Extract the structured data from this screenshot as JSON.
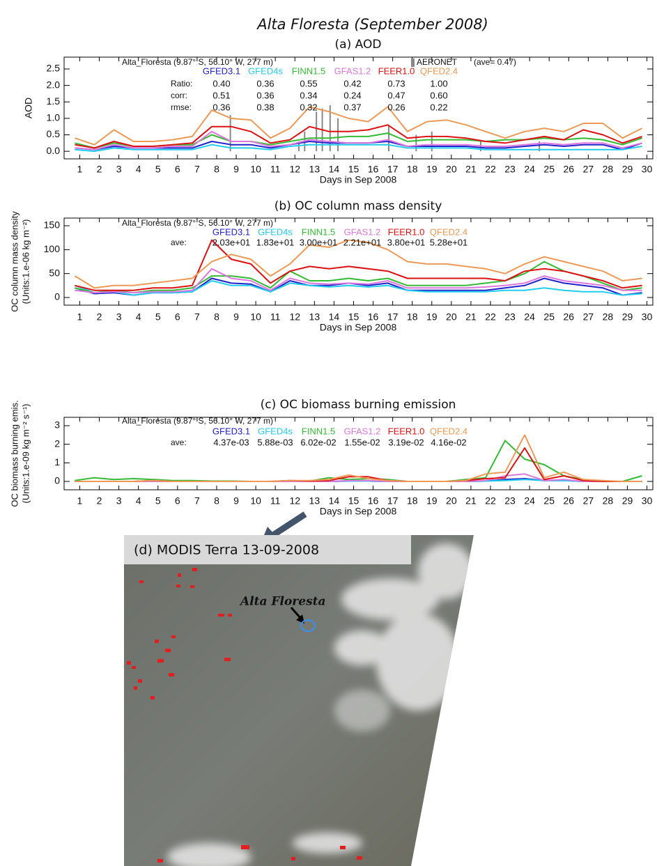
{
  "title": "Alta Floresta (September 2008)",
  "chart_data": [
    {
      "type": "line",
      "title": "(a) AOD",
      "station": "Alta_Floresta (9.87° S,  56.10° W,  277 m)",
      "xlabel": "Days in Sep 2008",
      "ylabel": [
        "AOD"
      ],
      "x": [
        0.75,
        1.75,
        2.75,
        3.75,
        4.75,
        5.75,
        6.75,
        7.75,
        8.75,
        9.75,
        10.75,
        11.75,
        12.75,
        13.75,
        14.75,
        15.75,
        16.75,
        17.75,
        18.75,
        19.75,
        20.75,
        21.75,
        22.75,
        23.75,
        24.75,
        25.75,
        26.75,
        27.75,
        28.75,
        29.75
      ],
      "xlim": [
        0.2,
        30.3
      ],
      "xticks": [
        1,
        2,
        3,
        4,
        5,
        6,
        7,
        8,
        9,
        10,
        11,
        12,
        13,
        14,
        15,
        16,
        17,
        18,
        19,
        20,
        21,
        22,
        23,
        24,
        25,
        26,
        27,
        28,
        29,
        30
      ],
      "ylim": [
        -0.23,
        2.86
      ],
      "yticks": [
        {
          "value": 0,
          "label": "0.0"
        },
        {
          "value": 0.5,
          "label": "0.5"
        },
        {
          "value": 1,
          "label": "1.0"
        },
        {
          "value": 1.5,
          "label": "1.5"
        },
        {
          "value": 2,
          "label": "2.0"
        },
        {
          "value": 2.5,
          "label": "2.5"
        }
      ],
      "series": [
        {
          "name": "GFED3.1",
          "color": "#2222cc",
          "values": [
            0.1,
            0.05,
            0.15,
            0.1,
            0.1,
            0.1,
            0.1,
            0.3,
            0.2,
            0.2,
            0.1,
            0.2,
            0.3,
            0.25,
            0.25,
            0.25,
            0.3,
            0.15,
            0.15,
            0.15,
            0.15,
            0.1,
            0.1,
            0.15,
            0.2,
            0.15,
            0.2,
            0.2,
            0.05,
            0.25
          ]
        },
        {
          "name": "GFED4s",
          "color": "#22ccee",
          "values": [
            0.05,
            0,
            0.1,
            0.05,
            0.05,
            0.05,
            0.05,
            0.2,
            0.1,
            0.1,
            0.05,
            0.15,
            0.2,
            0.2,
            0.2,
            0.2,
            0.2,
            0.1,
            0.1,
            0.1,
            0.1,
            0.05,
            0.05,
            0.05,
            0.05,
            0.05,
            0.05,
            0.05,
            0.05,
            0.15
          ]
        },
        {
          "name": "FINN1.5",
          "color": "#33bb33",
          "values": [
            0.25,
            0.1,
            0.25,
            0.15,
            0.15,
            0.2,
            0.2,
            0.5,
            0.3,
            0.3,
            0.2,
            0.3,
            0.4,
            0.4,
            0.45,
            0.45,
            0.55,
            0.3,
            0.35,
            0.35,
            0.35,
            0.3,
            0.35,
            0.35,
            0.4,
            0.35,
            0.4,
            0.35,
            0.2,
            0.4
          ]
        },
        {
          "name": "GFAS1.2",
          "color": "#dd77dd",
          "values": [
            0.1,
            0.05,
            0.2,
            0.1,
            0.1,
            0.15,
            0.15,
            0.6,
            0.3,
            0.3,
            0.15,
            0.2,
            0.35,
            0.3,
            0.25,
            0.25,
            0.35,
            0.15,
            0.2,
            0.2,
            0.2,
            0.15,
            0.15,
            0.2,
            0.25,
            0.2,
            0.25,
            0.25,
            0.1,
            0.25
          ]
        },
        {
          "name": "FEER1.0",
          "color": "#dd1111",
          "values": [
            0.2,
            0.1,
            0.3,
            0.15,
            0.15,
            0.2,
            0.25,
            0.75,
            0.75,
            0.6,
            0.25,
            0.35,
            0.75,
            0.6,
            0.6,
            0.65,
            0.8,
            0.4,
            0.45,
            0.45,
            0.4,
            0.3,
            0.25,
            0.35,
            0.45,
            0.35,
            0.65,
            0.5,
            0.25,
            0.45
          ]
        },
        {
          "name": "QFED2.4",
          "color": "#ee9955",
          "values": [
            0.4,
            0.2,
            0.65,
            0.3,
            0.3,
            0.35,
            0.45,
            1.25,
            1,
            0.95,
            0.4,
            0.7,
            1.35,
            1.2,
            1,
            0.9,
            1.35,
            0.6,
            0.9,
            0.95,
            0.8,
            0.6,
            0.4,
            0.6,
            0.7,
            0.6,
            0.85,
            0.85,
            0.4,
            0.7
          ]
        }
      ],
      "aeronet": {
        "name": "AERONET",
        "ave_label": "(ave= 0.47)",
        "color": "#888888",
        "x": [
          8.7,
          12.2,
          12.5,
          13.1,
          13.4,
          13.8,
          14.2,
          16.8,
          18.2,
          19,
          21.5,
          24.5
        ],
        "values": [
          1.1,
          0.3,
          0.6,
          1.2,
          1.3,
          1.4,
          1,
          0.8,
          0.5,
          0.6,
          0.3,
          0.3
        ]
      },
      "stats": [
        {
          "label": "Ratio:",
          "values": [
            "0.40",
            "0.36",
            "0.55",
            "0.42",
            "0.73",
            "1.00"
          ]
        },
        {
          "label": "corr:",
          "values": [
            "0.51",
            "0.36",
            "0.34",
            "0.24",
            "0.47",
            "0.60"
          ]
        },
        {
          "label": "rmse:",
          "values": [
            "0.36",
            "0.38",
            "0.32",
            "0.37",
            "0.26",
            "0.22"
          ]
        }
      ]
    },
    {
      "type": "line",
      "title": "(b) OC column mass density",
      "station": "Alta_Floresta (9.87° S,  56.10° W,  277 m)",
      "xlabel": "Days in Sep 2008",
      "ylabel": [
        "OC column mass density",
        "(Units:1.e-06 kg m⁻²)"
      ],
      "x": [
        0.75,
        1.75,
        2.75,
        3.75,
        4.75,
        5.75,
        6.75,
        7.75,
        8.75,
        9.75,
        10.75,
        11.75,
        12.75,
        13.75,
        14.75,
        15.75,
        16.75,
        17.75,
        18.75,
        19.75,
        20.75,
        21.75,
        22.75,
        23.75,
        24.75,
        25.75,
        26.75,
        27.75,
        28.75,
        29.75
      ],
      "xlim": [
        0.2,
        30.3
      ],
      "xticks": [
        1,
        2,
        3,
        4,
        5,
        6,
        7,
        8,
        9,
        10,
        11,
        12,
        13,
        14,
        15,
        16,
        17,
        18,
        19,
        20,
        21,
        22,
        23,
        24,
        25,
        26,
        27,
        28,
        29,
        30
      ],
      "ylim": [
        -16,
        166
      ],
      "yticks": [
        0,
        50,
        100,
        150
      ],
      "series": [
        {
          "name": "GFED3.1",
          "color": "#2222cc",
          "values": [
            20,
            8,
            10,
            5,
            10,
            10,
            12,
            40,
            30,
            28,
            12,
            35,
            25,
            25,
            30,
            25,
            30,
            15,
            15,
            15,
            15,
            15,
            20,
            25,
            40,
            30,
            25,
            20,
            5,
            10
          ]
        },
        {
          "name": "GFED4s",
          "color": "#22ccee",
          "values": [
            25,
            10,
            12,
            5,
            10,
            10,
            12,
            35,
            25,
            25,
            12,
            30,
            25,
            22,
            25,
            22,
            25,
            15,
            12,
            12,
            12,
            12,
            15,
            15,
            20,
            15,
            12,
            12,
            5,
            8
          ]
        },
        {
          "name": "FINN1.5",
          "color": "#33bb33",
          "values": [
            20,
            10,
            15,
            10,
            15,
            15,
            20,
            45,
            45,
            40,
            20,
            55,
            35,
            35,
            40,
            35,
            40,
            25,
            25,
            25,
            25,
            30,
            35,
            50,
            75,
            55,
            45,
            30,
            15,
            20
          ]
        },
        {
          "name": "GFAS1.2",
          "color": "#dd77dd",
          "values": [
            15,
            10,
            12,
            10,
            12,
            12,
            15,
            60,
            40,
            35,
            15,
            40,
            30,
            28,
            30,
            28,
            35,
            20,
            20,
            20,
            20,
            22,
            25,
            30,
            45,
            35,
            30,
            25,
            15,
            15
          ]
        },
        {
          "name": "FEER1.0",
          "color": "#dd1111",
          "values": [
            25,
            15,
            15,
            15,
            20,
            20,
            25,
            120,
            80,
            70,
            30,
            55,
            65,
            60,
            65,
            60,
            55,
            40,
            40,
            40,
            40,
            40,
            35,
            55,
            60,
            55,
            45,
            35,
            20,
            25
          ]
        },
        {
          "name": "QFED2.4",
          "color": "#ee9955",
          "values": [
            45,
            20,
            25,
            25,
            30,
            35,
            40,
            75,
            90,
            80,
            45,
            70,
            110,
            105,
            120,
            115,
            100,
            75,
            70,
            70,
            65,
            60,
            50,
            70,
            85,
            75,
            65,
            55,
            35,
            40
          ]
        }
      ],
      "stats": [
        {
          "label": "ave:",
          "values": [
            "2.03e+01",
            "1.83e+01",
            "3.00e+01",
            "2.21e+01",
            "3.80e+01",
            "5.28e+01"
          ]
        }
      ]
    },
    {
      "type": "line",
      "title": "(c) OC biomass burning emission",
      "station": "Alta_Floresta (9.87° S,  56.10° W,  277 m)",
      "xlabel": "Days in Sep 2008",
      "ylabel": [
        "OC biomass burning emis.",
        "(Units:1.e-09 kg m⁻² s⁻¹)"
      ],
      "x": [
        0.75,
        1.75,
        2.75,
        3.75,
        4.75,
        5.75,
        6.75,
        7.75,
        8.75,
        9.75,
        10.75,
        11.75,
        12.75,
        13.75,
        14.75,
        15.75,
        16.75,
        17.75,
        18.75,
        19.75,
        20.75,
        21.75,
        22.75,
        23.75,
        24.75,
        25.75,
        26.75,
        27.75,
        28.75,
        29.75
      ],
      "xlim": [
        0.2,
        30.3
      ],
      "xticks": [
        1,
        2,
        3,
        4,
        5,
        6,
        7,
        8,
        9,
        10,
        11,
        12,
        13,
        14,
        15,
        16,
        17,
        18,
        19,
        20,
        21,
        22,
        23,
        24,
        25,
        26,
        27,
        28,
        29,
        30
      ],
      "ylim": [
        -0.45,
        3.45
      ],
      "yticks": [
        0,
        1,
        2,
        3
      ],
      "series": [
        {
          "name": "GFED3.1",
          "color": "#2222cc",
          "values": [
            0,
            0,
            0,
            0,
            0,
            0,
            0,
            0,
            0,
            0,
            0,
            0,
            0,
            0,
            0.02,
            0.02,
            0,
            0,
            0,
            0,
            0,
            0.02,
            0.1,
            0.15,
            0.05,
            0.05,
            0,
            0,
            0,
            0
          ]
        },
        {
          "name": "GFED4s",
          "color": "#22ccee",
          "values": [
            0,
            0,
            0,
            0,
            0,
            0,
            0,
            0,
            0,
            0,
            0,
            0,
            0,
            0,
            0.02,
            0.02,
            0,
            0,
            0,
            0,
            0,
            0.02,
            0.05,
            0.1,
            0.05,
            0.05,
            0,
            0,
            0,
            0
          ]
        },
        {
          "name": "FINN1.5",
          "color": "#33bb33",
          "values": [
            0.05,
            0.2,
            0.1,
            0.15,
            0.1,
            0.05,
            0.05,
            0.02,
            0.02,
            0,
            0,
            0,
            0.02,
            0.2,
            0.1,
            0.15,
            0.1,
            0,
            0,
            0,
            0.1,
            0.2,
            2.2,
            1.2,
            0.9,
            0.3,
            0.1,
            0,
            0,
            0.3
          ]
        },
        {
          "name": "GFAS1.2",
          "color": "#dd77dd",
          "values": [
            0,
            0,
            0,
            0,
            0,
            0,
            0,
            0,
            0,
            0,
            0,
            0,
            0,
            0,
            0.05,
            0.05,
            0,
            0,
            0,
            0,
            0,
            0.05,
            0.3,
            0.4,
            0.05,
            0.1,
            0,
            0,
            0,
            0
          ]
        },
        {
          "name": "FEER1.0",
          "color": "#dd1111",
          "values": [
            0,
            0,
            0,
            0,
            0.05,
            0,
            0,
            0,
            0,
            0,
            0,
            0.05,
            0.02,
            0.05,
            0.25,
            0.25,
            0.05,
            0,
            0,
            0,
            0.05,
            0.15,
            0.2,
            1.8,
            0.1,
            0.3,
            0.05,
            0,
            0,
            0
          ]
        },
        {
          "name": "QFED2.4",
          "color": "#ee9955",
          "values": [
            0,
            0,
            0,
            0,
            0.05,
            0,
            0,
            0,
            0,
            0,
            0,
            0.05,
            0.05,
            0.1,
            0.35,
            0.15,
            0.05,
            0,
            0,
            0,
            0.05,
            0.4,
            0.5,
            2.5,
            0.2,
            0.5,
            0.1,
            0.05,
            0,
            0
          ]
        }
      ],
      "stats": [
        {
          "label": "ave:",
          "values": [
            "4.37e-03",
            "5.88e-03",
            "6.02e-02",
            "1.55e-02",
            "3.19e-02",
            "4.16e-02"
          ]
        }
      ]
    }
  ],
  "image": {
    "caption": "(d) MODIS Terra 13-09-2008",
    "place": "Alta Floresta"
  }
}
